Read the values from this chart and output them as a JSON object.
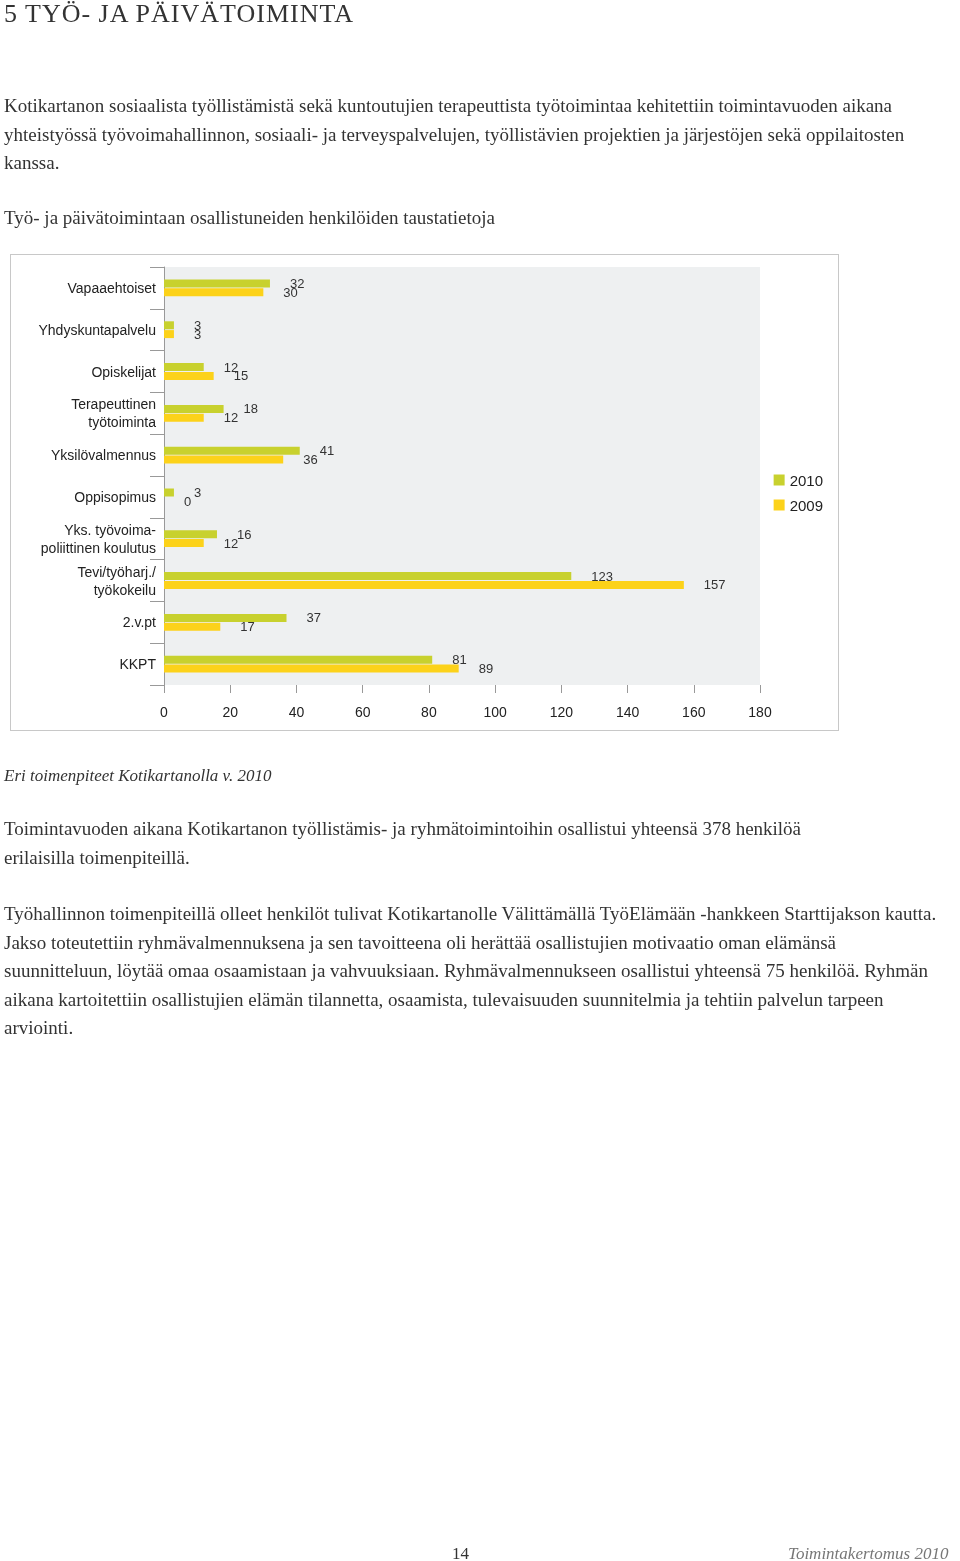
{
  "chart_data": {
    "type": "bar",
    "orientation": "horizontal",
    "title": "Työ- ja päivätoimintaan osallistuneiden henkilöiden taustatietoja",
    "categories": [
      "Vapaaehtoiset",
      "Yhdyskuntapalvelu",
      "Opiskelijat",
      "Terapeuttinen\ntyötoiminta",
      "Yksilövalmennus",
      "Oppisopimus",
      "Yks. työvoima-\npoliittinen koulutus",
      "Tevi/työharj./\ntyökokeilu",
      "2.v.pt",
      "KKPT"
    ],
    "series": [
      {
        "name": "2010",
        "color": "#c8d12e",
        "values": [
          32,
          3,
          12,
          18,
          41,
          3,
          16,
          123,
          37,
          81
        ]
      },
      {
        "name": "2009",
        "color": "#fcd21a",
        "values": [
          30,
          3,
          15,
          12,
          36,
          0,
          12,
          157,
          17,
          89
        ]
      }
    ],
    "xlim": [
      0,
      180
    ],
    "xticks": [
      0,
      20,
      40,
      60,
      80,
      100,
      120,
      140,
      160,
      180
    ],
    "data_labels": true,
    "legend": "right",
    "grid": false,
    "annotations": [
      "5 TYÖ- JA PÄIVÄTOIMINTA",
      "Kotikartanon sosiaalista työllistämistä sekä kuntoutujien terapeuttista työtoimintaa kehitettiin toimintavuoden aikana yhteistyössä työvoimahallinnon, sosiaali- ja terveyspalvelujen, työllistävien projektien ja järjestöjen sekä oppilaitosten kanssa.",
      "Eri toimenpiteet Kotikartanolla v. 2010",
      "Toimintavuoden aikana Kotikartanon työllistämis- ja ryhmätoimintoihin osallistui yhteensä 378 henkilöä erilaisilla toimenpiteillä.",
      "Työhallinnon toimenpiteillä olleet henkilöt tulivat Kotikartanolle Välittämällä TyöElämään -hankkeen Starttijakson kautta. Jakso toteutettiin ryhmävalmennuksena ja sen tavoitteena oli herättää osallistujien motivaatio oman elämänsä suunnitteluun, löytää omaa osaamistaan ja vahvuuksiaan. Ryhmävalmennukseen osallistui yhteensä 75 henkilöä. Ryhmän aikana kartoitettiin osallistujien elämän tilannetta, osaamista, tulevaisuuden suunnitelmia ja tehtiin palvelun tarpeen arviointi.",
      "14",
      "Toimintakertomus 2010"
    ]
  }
}
